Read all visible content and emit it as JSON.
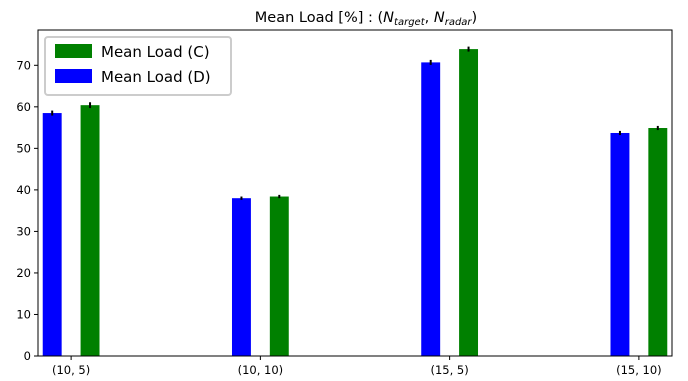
{
  "chart_data": {
    "type": "bar",
    "title": {
      "prefix": "Mean Load [%] : (",
      "n1": "N",
      "s1": "target",
      "sep": ", ",
      "n2": "N",
      "s2": "radar",
      "suffix": ")"
    },
    "xlabel": "",
    "ylabel": "",
    "categories": [
      "(10, 5)",
      "(10, 10)",
      "(15, 5)",
      "(15, 10)"
    ],
    "series": [
      {
        "name": "Mean Load (D)",
        "color": "#0000ff",
        "values": [
          58.5,
          38.0,
          70.7,
          53.7
        ],
        "errors": [
          0.6,
          0.4,
          0.6,
          0.5
        ]
      },
      {
        "name": "Mean Load (C)",
        "color": "#008000",
        "values": [
          60.4,
          38.4,
          73.9,
          54.9
        ],
        "errors": [
          0.7,
          0.4,
          0.6,
          0.5
        ]
      }
    ],
    "legend_order": [
      1,
      0
    ],
    "legend_position": "top-left",
    "ylim": [
      0,
      78.5
    ],
    "yticks": [
      0,
      10,
      20,
      30,
      40,
      50,
      60,
      70
    ],
    "grid": false
  }
}
